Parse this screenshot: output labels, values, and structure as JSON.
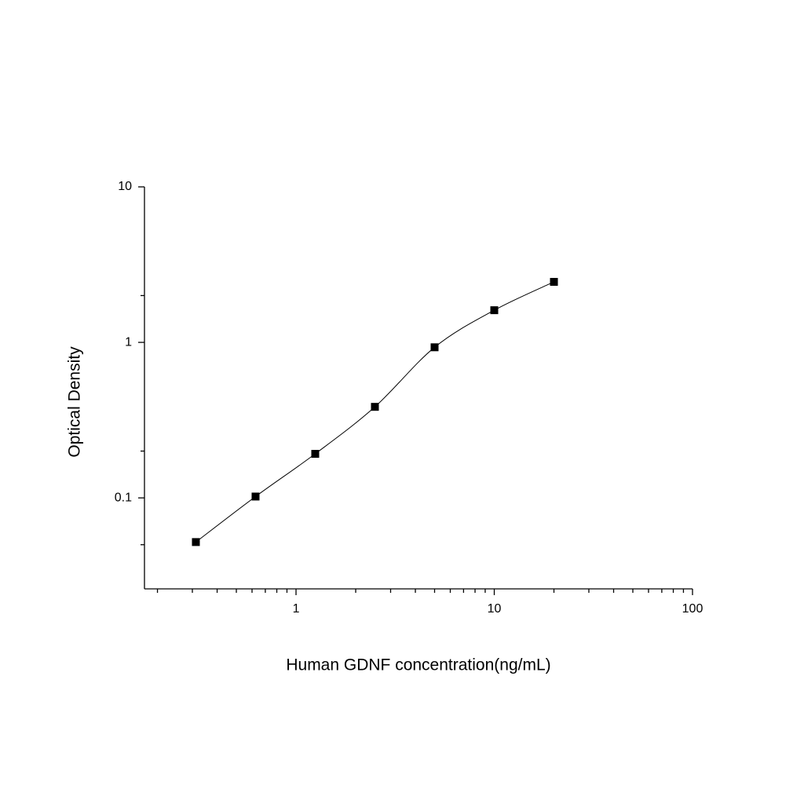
{
  "chart_data": {
    "type": "scatter",
    "x_label": "Human GDNF concentration(ng/mL)",
    "y_label": "Optical Density",
    "xscale": "log",
    "yscale": "log",
    "xlim": [
      0.172,
      100
    ],
    "ylim": [
      0.026,
      10
    ],
    "xticks": [
      1,
      10,
      100
    ],
    "yticks": [
      0.1,
      1,
      10
    ],
    "xminorticks": [
      0.2,
      0.3,
      0.4,
      0.5,
      0.6,
      0.7,
      0.8,
      0.9,
      2,
      3,
      4,
      5,
      6,
      7,
      8,
      9,
      20,
      30,
      40,
      50,
      60,
      70,
      80,
      90
    ],
    "yminorticks": [
      0.05,
      0.2,
      2
    ],
    "series": [
      {
        "color": "#000000",
        "line": true,
        "x": [
          0.3125,
          0.625,
          1.25,
          2.5,
          5,
          10,
          20
        ],
        "values": [
          0.052,
          0.102,
          0.192,
          0.385,
          0.93,
          1.61,
          2.45
        ]
      }
    ]
  }
}
